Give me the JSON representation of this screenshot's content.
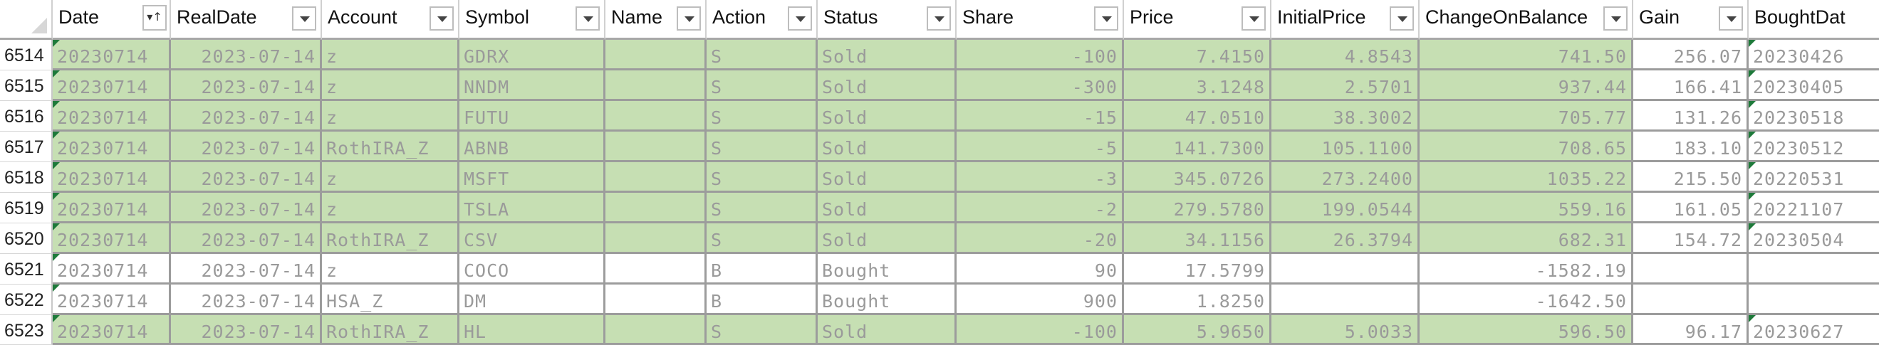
{
  "headers": {
    "date": "Date",
    "realdate": "RealDate",
    "account": "Account",
    "symbol": "Symbol",
    "name": "Name",
    "action": "Action",
    "status": "Status",
    "share": "Share",
    "price": "Price",
    "initialprice": "InitialPrice",
    "changeonbalance": "ChangeOnBalance",
    "gain": "Gain",
    "boughtdate": "BoughtDat"
  },
  "rows": [
    {
      "num": "6514",
      "date": "20230714",
      "realdate": "2023-07-14",
      "account": "z",
      "symbol": "GDRX",
      "name": "",
      "action": "S",
      "status": "Sold",
      "share": "-100",
      "price": "7.4150",
      "initialprice": "4.8543",
      "changeonbalance": "741.50",
      "gain": "256.07",
      "boughtdate": "20230426",
      "fill": "green"
    },
    {
      "num": "6515",
      "date": "20230714",
      "realdate": "2023-07-14",
      "account": "z",
      "symbol": "NNDM",
      "name": "",
      "action": "S",
      "status": "Sold",
      "share": "-300",
      "price": "3.1248",
      "initialprice": "2.5701",
      "changeonbalance": "937.44",
      "gain": "166.41",
      "boughtdate": "20230405",
      "fill": "green"
    },
    {
      "num": "6516",
      "date": "20230714",
      "realdate": "2023-07-14",
      "account": "z",
      "symbol": "FUTU",
      "name": "",
      "action": "S",
      "status": "Sold",
      "share": "-15",
      "price": "47.0510",
      "initialprice": "38.3002",
      "changeonbalance": "705.77",
      "gain": "131.26",
      "boughtdate": "20230518",
      "fill": "green"
    },
    {
      "num": "6517",
      "date": "20230714",
      "realdate": "2023-07-14",
      "account": "RothIRA_Z",
      "symbol": "ABNB",
      "name": "",
      "action": "S",
      "status": "Sold",
      "share": "-5",
      "price": "141.7300",
      "initialprice": "105.1100",
      "changeonbalance": "708.65",
      "gain": "183.10",
      "boughtdate": "20230512",
      "fill": "green"
    },
    {
      "num": "6518",
      "date": "20230714",
      "realdate": "2023-07-14",
      "account": "z",
      "symbol": "MSFT",
      "name": "",
      "action": "S",
      "status": "Sold",
      "share": "-3",
      "price": "345.0726",
      "initialprice": "273.2400",
      "changeonbalance": "1035.22",
      "gain": "215.50",
      "boughtdate": "20220531",
      "fill": "green"
    },
    {
      "num": "6519",
      "date": "20230714",
      "realdate": "2023-07-14",
      "account": "z",
      "symbol": "TSLA",
      "name": "",
      "action": "S",
      "status": "Sold",
      "share": "-2",
      "price": "279.5780",
      "initialprice": "199.0544",
      "changeonbalance": "559.16",
      "gain": "161.05",
      "boughtdate": "20221107",
      "fill": "green"
    },
    {
      "num": "6520",
      "date": "20230714",
      "realdate": "2023-07-14",
      "account": "RothIRA_Z",
      "symbol": "CSV",
      "name": "",
      "action": "S",
      "status": "Sold",
      "share": "-20",
      "price": "34.1156",
      "initialprice": "26.3794",
      "changeonbalance": "682.31",
      "gain": "154.72",
      "boughtdate": "20230504",
      "fill": "green"
    },
    {
      "num": "6521",
      "date": "20230714",
      "realdate": "2023-07-14",
      "account": "z",
      "symbol": "COCO",
      "name": "",
      "action": "B",
      "status": "Bought",
      "share": "90",
      "price": "17.5799",
      "initialprice": "",
      "changeonbalance": "-1582.19",
      "gain": "",
      "boughtdate": "",
      "fill": "white"
    },
    {
      "num": "6522",
      "date": "20230714",
      "realdate": "2023-07-14",
      "account": "HSA_Z",
      "symbol": "DM",
      "name": "",
      "action": "B",
      "status": "Bought",
      "share": "900",
      "price": "1.8250",
      "initialprice": "",
      "changeonbalance": "-1642.50",
      "gain": "",
      "boughtdate": "",
      "fill": "white"
    },
    {
      "num": "6523",
      "date": "20230714",
      "realdate": "2023-07-14",
      "account": "RothIRA_Z",
      "symbol": "HL",
      "name": "",
      "action": "S",
      "status": "Sold",
      "share": "-100",
      "price": "5.9650",
      "initialprice": "5.0033",
      "changeonbalance": "596.50",
      "gain": "96.17",
      "boughtdate": "20230627",
      "fill": "green"
    }
  ]
}
